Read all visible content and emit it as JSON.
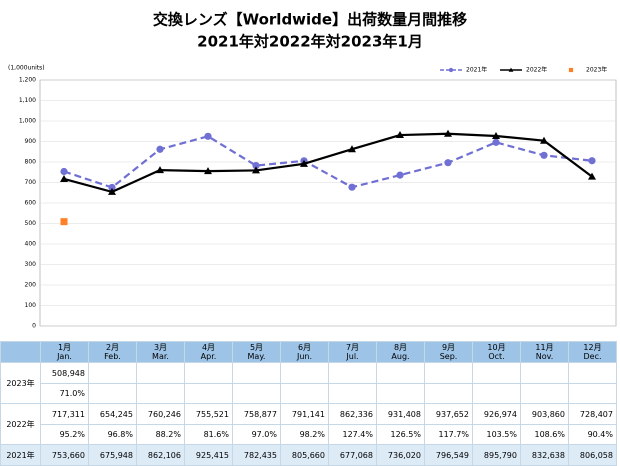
{
  "chart_data": {
    "type": "line",
    "title": "交換レンズ【Worldwide】出荷数量月間推移",
    "subtitle": "2021年対2022年対2023年1月",
    "y_unit_label": "(1,000units)",
    "categories": [
      "1月",
      "2月",
      "3月",
      "4月",
      "5月",
      "6月",
      "7月",
      "8月",
      "9月",
      "10月",
      "11月",
      "12月"
    ],
    "series": [
      {
        "name": "2021年",
        "color": "#6f6fd4",
        "line_style": "dashed",
        "marker": "circle",
        "values": [
          753.66,
          675.948,
          862.106,
          925.415,
          782.435,
          805.66,
          677.068,
          736.02,
          796.549,
          895.79,
          832.638,
          806.058
        ]
      },
      {
        "name": "2022年",
        "color": "#000000",
        "line_style": "solid",
        "marker": "triangle",
        "values": [
          717.311,
          654.245,
          760.246,
          755.521,
          758.877,
          791.141,
          862.336,
          931.408,
          937.652,
          926.974,
          903.86,
          728.407
        ]
      },
      {
        "name": "2023年",
        "color": "#ff7f27",
        "line_style": "none",
        "marker": "square",
        "values": [
          508.948,
          null,
          null,
          null,
          null,
          null,
          null,
          null,
          null,
          null,
          null,
          null
        ]
      }
    ],
    "ylim": [
      0,
      1200
    ],
    "yticks": [
      0,
      100,
      200,
      300,
      400,
      500,
      600,
      700,
      800,
      900,
      {
        "value": 1000,
        "label": "1,000"
      },
      {
        "value": 1100,
        "label": "1,100"
      },
      {
        "value": 1200,
        "label": "1,200"
      }
    ],
    "grid": true,
    "legend": "top-right"
  },
  "table": {
    "months_en": [
      "Jan.",
      "Feb.",
      "Mar.",
      "Apr.",
      "May.",
      "Jun.",
      "Jul.",
      "Aug.",
      "Sep.",
      "Oct.",
      "Nov.",
      "Dec."
    ],
    "rows": [
      {
        "label": "2023年",
        "values": [
          "508,948"
        ],
        "ratios": [
          "71.0%"
        ]
      },
      {
        "label": "2022年",
        "values": [
          "717,311",
          "654,245",
          "760,246",
          "755,521",
          "758,877",
          "791,141",
          "862,336",
          "931,408",
          "937,652",
          "926,974",
          "903,860",
          "728,407"
        ],
        "ratios": [
          "95.2%",
          "96.8%",
          "88.2%",
          "81.6%",
          "97.0%",
          "98.2%",
          "127.4%",
          "126.5%",
          "117.7%",
          "103.5%",
          "108.6%",
          "90.4%"
        ]
      },
      {
        "label": "2021年",
        "values": [
          "753,660",
          "675,948",
          "862,106",
          "925,415",
          "782,435",
          "805,660",
          "677,068",
          "736,020",
          "796,549",
          "895,790",
          "832,638",
          "806,058"
        ]
      }
    ]
  }
}
